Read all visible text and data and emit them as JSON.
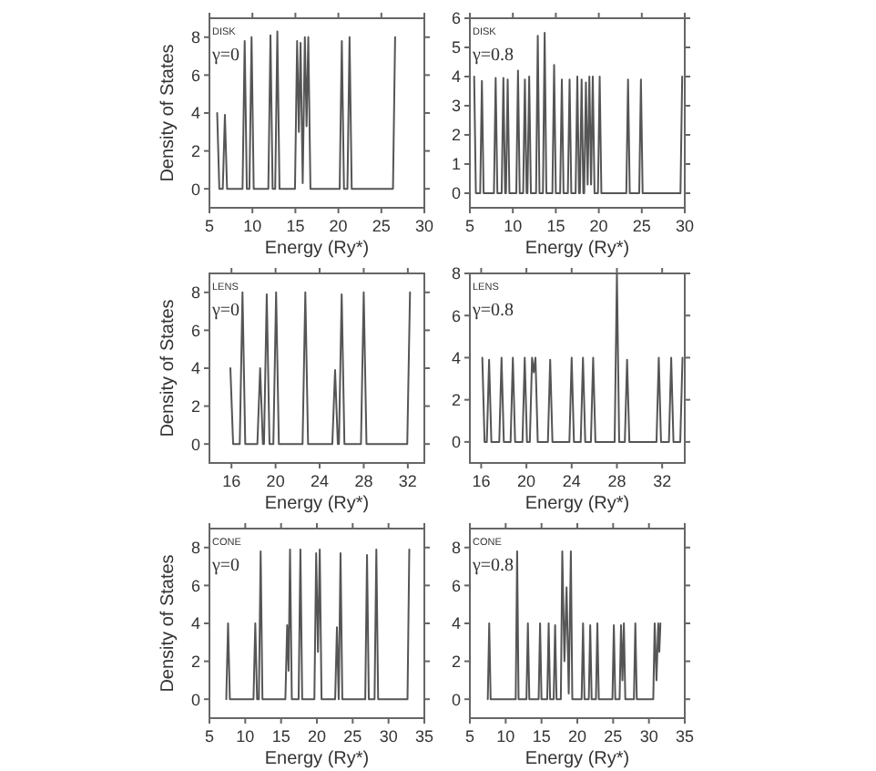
{
  "chart_data": [
    {
      "type": "line",
      "xlabel": "Energy (Ry*)",
      "ylabel": "Density of States",
      "annotations": [
        "DISK",
        "γ=0"
      ],
      "xlim": [
        5,
        30
      ],
      "xticks": [
        5,
        10,
        15,
        20,
        25,
        30
      ],
      "ylim": [
        -1,
        9
      ],
      "yticks": [
        0,
        2,
        4,
        6,
        8
      ],
      "series": [
        {
          "color": "#555555",
          "x": [
            5.9,
            6.15,
            6.55,
            6.8,
            7.05,
            8.85,
            9.1,
            9.35,
            9.65,
            9.9,
            10.15,
            11.85,
            12.1,
            12.35,
            12.65,
            12.9,
            13.15,
            14.95,
            15.2,
            15.4,
            15.6,
            15.85,
            16.1,
            16.3,
            16.5,
            16.75,
            20.15,
            20.4,
            20.65,
            21.05,
            21.3,
            21.55,
            26.35,
            26.6
          ],
          "values": [
            4,
            0,
            0,
            3.9,
            0,
            0,
            7.8,
            0,
            0,
            8,
            0,
            0,
            8.1,
            0,
            0,
            8.3,
            0,
            0,
            7.8,
            3,
            7.7,
            0.3,
            8,
            3.3,
            8,
            0,
            0,
            7.8,
            0,
            0,
            8,
            0,
            0,
            8
          ]
        }
      ]
    },
    {
      "type": "line",
      "xlabel": "Energy (Ry*)",
      "annotations": [
        "DISK",
        "γ=0.8"
      ],
      "xlim": [
        5,
        30
      ],
      "xticks": [
        5,
        10,
        15,
        20,
        25,
        30
      ],
      "ylim": [
        -0.5,
        6
      ],
      "yticks": [
        0,
        1,
        2,
        3,
        4,
        5,
        6
      ],
      "series": [
        {
          "color": "#555555",
          "x": [
            5.5,
            5.7,
            6.2,
            6.4,
            6.6,
            7.8,
            8.0,
            8.2,
            8.7,
            8.9,
            9.1,
            9.2,
            9.4,
            9.6,
            10.4,
            10.6,
            10.8,
            11.2,
            11.4,
            11.6,
            11.7,
            11.9,
            12.1,
            12.7,
            12.9,
            13.1,
            13.5,
            13.7,
            13.9,
            14.6,
            14.8,
            15.0,
            15.5,
            15.7,
            15.9,
            16.4,
            16.6,
            16.8,
            17.3,
            17.5,
            17.7,
            17.8,
            18.0,
            18.2,
            18.3,
            18.5,
            18.7,
            18.9,
            19.1,
            19.3,
            19.5,
            19.9,
            20.1,
            20.3,
            23.2,
            23.4,
            23.6,
            24.7,
            24.9,
            25.1,
            29.5,
            29.7
          ],
          "values": [
            4,
            0,
            0,
            3.85,
            0,
            0,
            3.95,
            0,
            0,
            3.95,
            0,
            0,
            3.9,
            0,
            0,
            4.2,
            0,
            0,
            3.9,
            0,
            0,
            4,
            0,
            0,
            5.4,
            0,
            0,
            5.5,
            0,
            0,
            4.4,
            0,
            0,
            3.9,
            0,
            0,
            3.9,
            0,
            0,
            4,
            0,
            0,
            3.9,
            0,
            0,
            3.8,
            0.3,
            4,
            0.3,
            4,
            0,
            0,
            4,
            0,
            0,
            3.9,
            0,
            0,
            3.9,
            0,
            0,
            4
          ]
        }
      ]
    },
    {
      "type": "line",
      "xlabel": "Energy (Ry*)",
      "ylabel": "Density of States",
      "annotations": [
        "LENS",
        "γ=0"
      ],
      "xlim": [
        14,
        33.5
      ],
      "xticks": [
        16,
        20,
        24,
        28,
        32
      ],
      "ylim": [
        -1,
        9
      ],
      "yticks": [
        0,
        2,
        4,
        6,
        8
      ],
      "series": [
        {
          "color": "#555555",
          "x": [
            15.9,
            16.15,
            16.75,
            17.0,
            17.25,
            18.35,
            18.6,
            18.85,
            18.95,
            19.2,
            19.45,
            19.8,
            20.05,
            20.3,
            22.45,
            22.7,
            22.95,
            25.15,
            25.4,
            25.65,
            25.75,
            26.0,
            26.25,
            27.75,
            28.0,
            28.25,
            31.95,
            32.2
          ],
          "values": [
            4,
            0,
            0,
            8,
            0,
            0,
            4,
            0,
            0,
            7.9,
            0,
            0,
            8,
            0,
            0,
            8,
            0,
            0,
            3.9,
            0,
            0,
            7.9,
            0,
            0,
            8,
            0,
            0,
            8
          ]
        }
      ]
    },
    {
      "type": "line",
      "xlabel": "Energy (Ry*)",
      "annotations": [
        "LENS",
        "γ=0.8"
      ],
      "xlim": [
        15,
        34
      ],
      "xticks": [
        16,
        20,
        24,
        28,
        32
      ],
      "ylim": [
        -1,
        8
      ],
      "yticks": [
        0,
        2,
        4,
        6,
        8
      ],
      "series": [
        {
          "color": "#555555",
          "x": [
            16.1,
            16.3,
            16.5,
            16.7,
            16.9,
            17.6,
            17.8,
            18.0,
            18.6,
            18.8,
            19.0,
            19.65,
            19.85,
            20.05,
            20.3,
            20.5,
            20.65,
            20.8,
            21.0,
            21.9,
            22.1,
            22.3,
            23.8,
            24.0,
            24.2,
            24.8,
            25.0,
            25.2,
            25.7,
            25.9,
            26.1,
            27.8,
            28.0,
            28.2,
            28.7,
            28.9,
            29.1,
            31.5,
            31.7,
            31.9,
            32.6,
            32.8,
            33.0,
            33.6,
            33.8
          ],
          "values": [
            4,
            0,
            0,
            3.9,
            0,
            0,
            4,
            0,
            0,
            4,
            0,
            0,
            4,
            0,
            0,
            4,
            3.3,
            4,
            0,
            0,
            3.9,
            0,
            0,
            4,
            0,
            0,
            4,
            0,
            0,
            4,
            0,
            0,
            8,
            0,
            0,
            3.9,
            0,
            0,
            4,
            0,
            0,
            4,
            0,
            0,
            4
          ]
        }
      ]
    },
    {
      "type": "line",
      "xlabel": "Energy (Ry*)",
      "ylabel": "Density of States",
      "annotations": [
        "CONE",
        "γ=0"
      ],
      "xlim": [
        5,
        35
      ],
      "xticks": [
        5,
        10,
        15,
        20,
        25,
        30,
        35
      ],
      "ylim": [
        -1,
        9
      ],
      "yticks": [
        0,
        2,
        4,
        6,
        8
      ],
      "series": [
        {
          "color": "#555555",
          "x": [
            7.35,
            7.6,
            7.85,
            11.15,
            11.4,
            11.65,
            11.9,
            12.15,
            12.4,
            15.6,
            15.85,
            16.05,
            16.25,
            16.5,
            17.45,
            17.7,
            17.95,
            19.65,
            19.9,
            20.15,
            20.4,
            20.65,
            22.55,
            22.8,
            23.05,
            23.3,
            23.55,
            26.75,
            27.0,
            27.25,
            28.05,
            28.3,
            28.55,
            32.65,
            32.9
          ],
          "values": [
            0,
            4,
            0,
            0,
            4,
            0,
            0,
            7.8,
            0,
            0,
            3.9,
            1.5,
            7.9,
            0,
            0,
            7.9,
            0,
            0,
            7.7,
            2.5,
            7.9,
            0,
            0,
            3.8,
            0,
            7.7,
            0,
            0,
            7.6,
            0,
            0,
            7.9,
            0,
            0,
            7.9
          ]
        }
      ]
    },
    {
      "type": "line",
      "xlabel": "Energy (Ry*)",
      "annotations": [
        "CONE",
        "γ=0.8"
      ],
      "xlim": [
        5,
        35
      ],
      "xticks": [
        5,
        10,
        15,
        20,
        25,
        30,
        35
      ],
      "ylim": [
        -1,
        9
      ],
      "yticks": [
        0,
        2,
        4,
        6,
        8
      ],
      "series": [
        {
          "color": "#555555",
          "x": [
            7.5,
            7.7,
            7.9,
            11.4,
            11.6,
            11.8,
            12.9,
            13.1,
            13.3,
            14.6,
            14.8,
            15.0,
            15.8,
            16.0,
            16.2,
            16.7,
            16.9,
            17.1,
            17.7,
            17.9,
            18.2,
            18.5,
            18.8,
            19.1,
            19.3,
            20.6,
            20.8,
            21.0,
            21.6,
            21.8,
            22.0,
            22.6,
            22.8,
            23.0,
            24.9,
            25.1,
            25.3,
            25.9,
            26.1,
            26.3,
            26.5,
            26.7,
            27.9,
            28.1,
            28.3,
            30.6,
            30.8,
            31.05,
            31.3,
            31.45,
            31.6
          ],
          "values": [
            0,
            4,
            0,
            0,
            7.8,
            0,
            0,
            4,
            0,
            0,
            4,
            0,
            0,
            4,
            0,
            0,
            3.9,
            0,
            0,
            7.8,
            2,
            5.9,
            0.3,
            7.8,
            0,
            0,
            4,
            0,
            0,
            3.9,
            0,
            0,
            4,
            0,
            0,
            3.9,
            0,
            0,
            3.9,
            1,
            4,
            0,
            0,
            4,
            0,
            0,
            4,
            1,
            4,
            2.5,
            4
          ]
        }
      ]
    }
  ]
}
